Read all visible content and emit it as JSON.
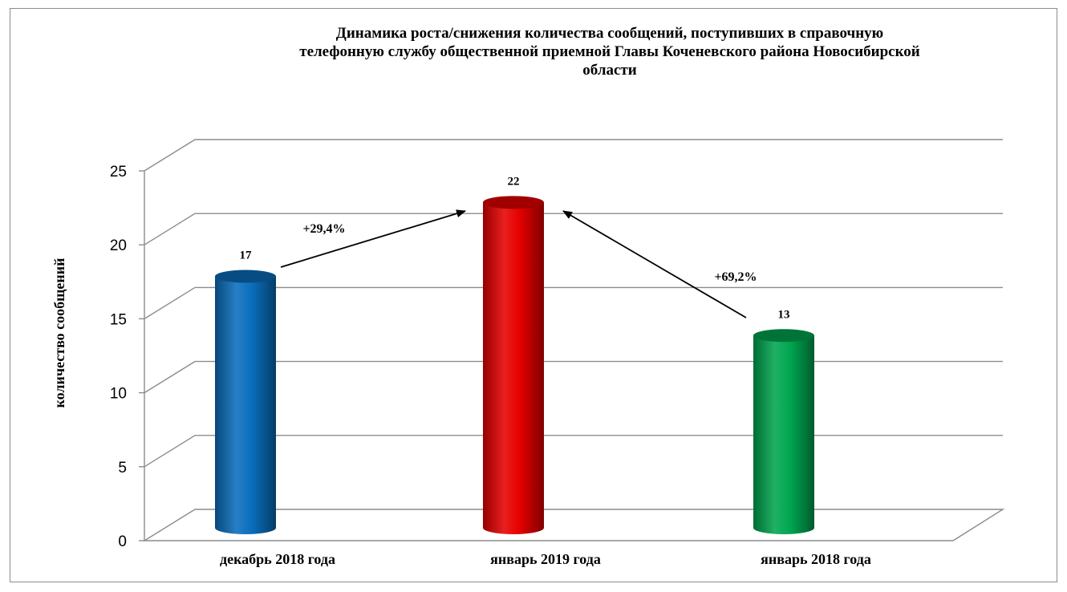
{
  "chart_data": {
    "type": "bar",
    "title_lines": [
      "Динамика роста/снижения количества сообщений, поступивших   в справочную",
      "телефонную службу общественной приемной  Главы Коченевского района Новосибирской",
      "области"
    ],
    "ylabel": "количество сообщений",
    "xlabel": "",
    "categories": [
      "декабрь 2018 года",
      "январь 2019 года",
      "январь 2018 года"
    ],
    "values": [
      17,
      22,
      13
    ],
    "value_labels": [
      "17",
      "22",
      "13"
    ],
    "colors": [
      "#0a6ebd",
      "#e60000",
      "#00a650"
    ],
    "ylim": [
      0,
      25
    ],
    "yticks": [
      "0",
      "5",
      "10",
      "15",
      "20",
      "25"
    ],
    "grid": true,
    "annotations": [
      {
        "text": "+29,4%",
        "from_category": 0,
        "to_category": 1
      },
      {
        "text": "+69,2%",
        "from_category": 2,
        "to_category": 1
      }
    ]
  }
}
